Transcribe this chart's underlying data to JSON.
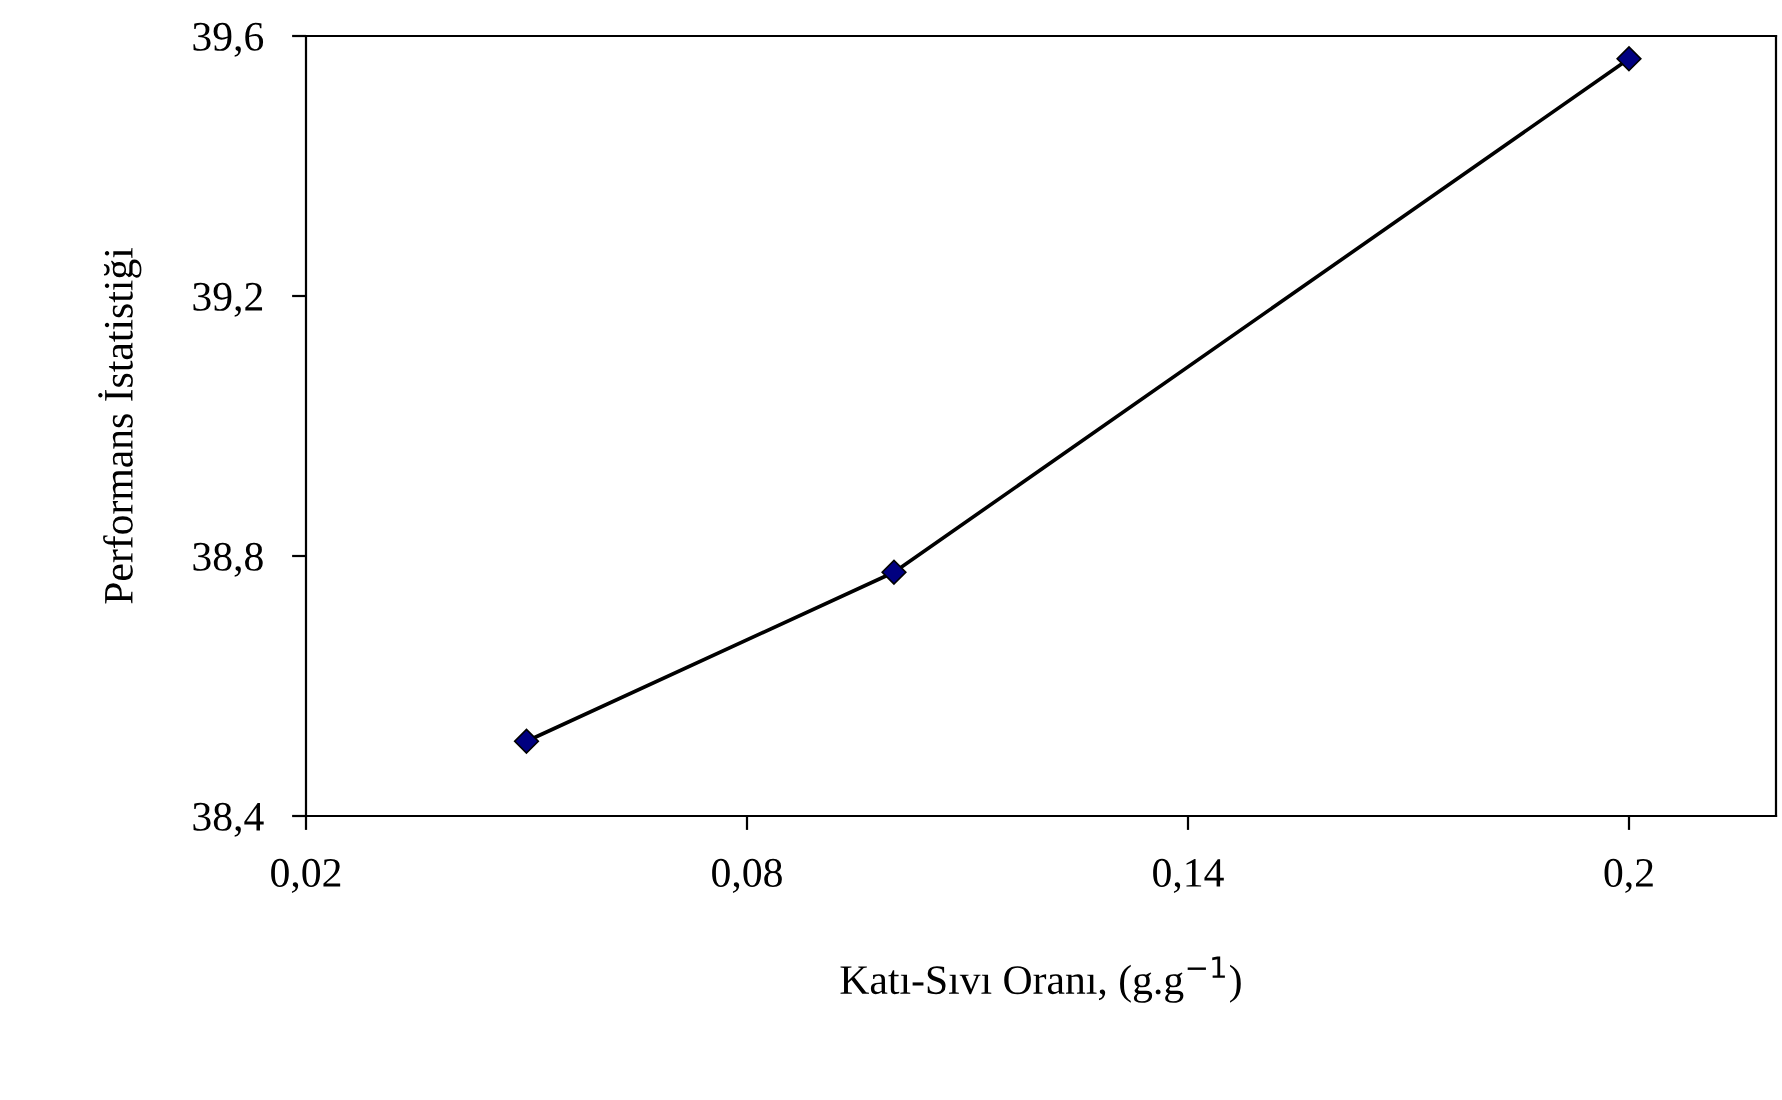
{
  "chart_data": {
    "type": "line",
    "xlabel": "Katı-Sıvı Oranı, (g.g$^{−1}$)",
    "ylabel": "Performans İstatistiği",
    "x": [
      0.05,
      0.1,
      0.2
    ],
    "series": [
      {
        "color": "#000080",
        "values": [
          38.515,
          38.775,
          39.565
        ]
      }
    ],
    "xlim": [
      0.02,
      0.22
    ],
    "xticks": [
      {
        "value": 0.02,
        "label": "0,02"
      },
      {
        "value": 0.08,
        "label": "0,08"
      },
      {
        "value": 0.14,
        "label": "0,14"
      },
      {
        "value": 0.2,
        "label": "0,2"
      }
    ],
    "ylim": [
      38.4,
      39.6
    ],
    "yticks": [
      {
        "value": 38.4,
        "label": "38,4"
      },
      {
        "value": 38.8,
        "label": "38,8"
      },
      {
        "value": 39.2,
        "label": "39,2"
      },
      {
        "value": 39.6,
        "label": "39,6"
      }
    ],
    "grid": false,
    "legend": false,
    "marker": "diamond",
    "line_style": "solid"
  }
}
